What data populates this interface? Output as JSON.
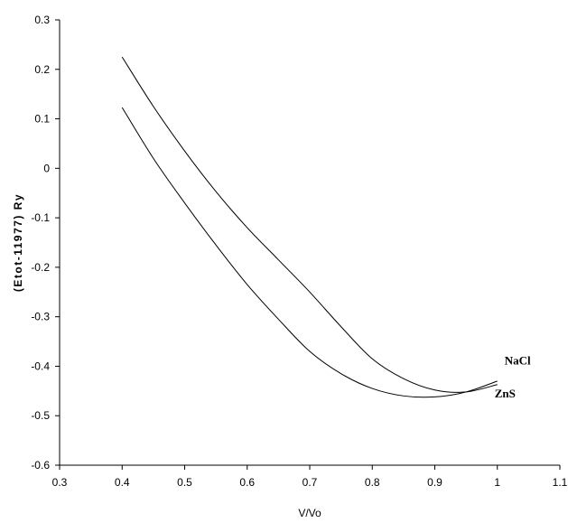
{
  "chart_data": {
    "type": "line",
    "xlabel": "V/Vo",
    "ylabel": "(Etot-11977) Ry",
    "xlim": [
      0.3,
      1.1
    ],
    "ylim": [
      -0.6,
      0.3
    ],
    "x_ticks": [
      "0.3",
      "0.4",
      "0.5",
      "0.6",
      "0.7",
      "0.8",
      "0.9",
      "1",
      "1.1"
    ],
    "y_ticks": [
      "0.3",
      "0.2",
      "0.1",
      "0",
      "-0.1",
      "-0.2",
      "-0.3",
      "-0.4",
      "-0.5",
      "-0.6"
    ],
    "grid": false,
    "legend": "none",
    "series": [
      {
        "name": "NaCl",
        "x": [
          0.4,
          0.45,
          0.5,
          0.55,
          0.6,
          0.65,
          0.7,
          0.75,
          0.8,
          0.85,
          0.9,
          0.95,
          1.0
        ],
        "y": [
          0.225,
          0.125,
          0.035,
          -0.047,
          -0.12,
          -0.185,
          -0.25,
          -0.32,
          -0.385,
          -0.425,
          -0.448,
          -0.452,
          -0.437
        ]
      },
      {
        "name": "ZnS",
        "x": [
          0.4,
          0.45,
          0.5,
          0.55,
          0.6,
          0.65,
          0.7,
          0.75,
          0.8,
          0.85,
          0.9,
          0.95,
          1.0
        ],
        "y": [
          0.123,
          0.02,
          -0.07,
          -0.155,
          -0.235,
          -0.305,
          -0.37,
          -0.415,
          -0.445,
          -0.46,
          -0.462,
          -0.452,
          -0.43
        ]
      }
    ],
    "colors": {
      "line": "#000000",
      "axis": "#000000",
      "background": "#ffffff"
    }
  }
}
